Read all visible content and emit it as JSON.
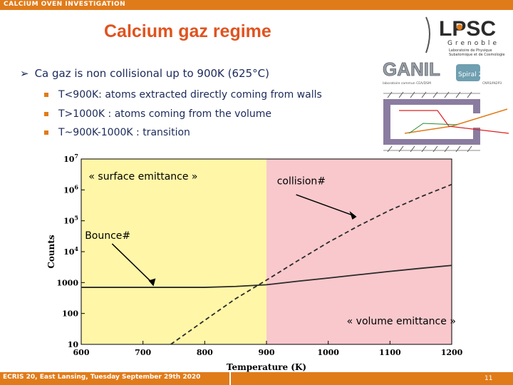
{
  "header": {
    "section_label": "CALCIUM OVEN INVESTIGATION"
  },
  "slide": {
    "title": "Calcium gaz regime",
    "main_bullet": "Ca gaz is non collisional up to 900K (625°C)",
    "sub_bullets": [
      "T<900K: atoms extracted directly coming from walls",
      "T>1000K : atoms coming from the volume",
      "T~900K-1000K : transition"
    ]
  },
  "logos": {
    "lpsc_main": "LPSC",
    "lpsc_city": "Grenoble",
    "lpsc_sub1": "Laboratoire de Physique",
    "lpsc_sub2": "Subatomique et de Cosmologie",
    "ganil_main": "GANIL",
    "ganil_spiral": "Spiral 2",
    "ganil_caption": "laboratoire commun CEA/DSM",
    "ganil_caption2": "CNRS/IN2P3"
  },
  "chart_data": {
    "type": "line",
    "xlabel": "Temperature (K)",
    "ylabel": "Counts",
    "xlim": [
      600,
      1200
    ],
    "ylim": [
      10,
      10000000
    ],
    "yscale": "log",
    "x_ticks": [
      600,
      700,
      800,
      900,
      1000,
      1100,
      1200
    ],
    "y_tick_labels": [
      "10",
      "100",
      "1000",
      "10^4",
      "10^5",
      "10^6",
      "10^7"
    ],
    "y_ticks": [
      10,
      100,
      1000,
      10000,
      100000,
      1000000,
      10000000
    ],
    "regions": [
      {
        "x_from": 600,
        "x_to": 900,
        "color": "#fff6a8",
        "label": "« surface emittance »"
      },
      {
        "x_from": 900,
        "x_to": 1200,
        "color": "#f8c8cc",
        "label": "« volume  emittance »"
      }
    ],
    "series": [
      {
        "style": "solid",
        "x": [
          600,
          700,
          800,
          850,
          900,
          950,
          1000,
          1050,
          1100,
          1150,
          1200
        ],
        "y": [
          700,
          700,
          700,
          750,
          850,
          1100,
          1400,
          1800,
          2300,
          2900,
          3600
        ]
      },
      {
        "style": "dashed",
        "x": [
          745,
          800,
          850,
          900,
          950,
          1000,
          1050,
          1100,
          1150,
          1200
        ],
        "y": [
          10,
          60,
          300,
          1200,
          5000,
          20000,
          70000,
          220000,
          600000,
          1500000
        ]
      }
    ],
    "annotations": [
      {
        "text": "Bounce#",
        "points_to": "solid"
      },
      {
        "text": "collision#",
        "points_to": "dashed"
      }
    ]
  },
  "colors": {
    "accent_orange": "#e07b1a",
    "title_red": "#e0531f",
    "text_navy": "#1b2a5a"
  },
  "footer": {
    "event": "ECRIS 20, East Lansing, Tuesday September 29th 2020",
    "page": "11"
  }
}
